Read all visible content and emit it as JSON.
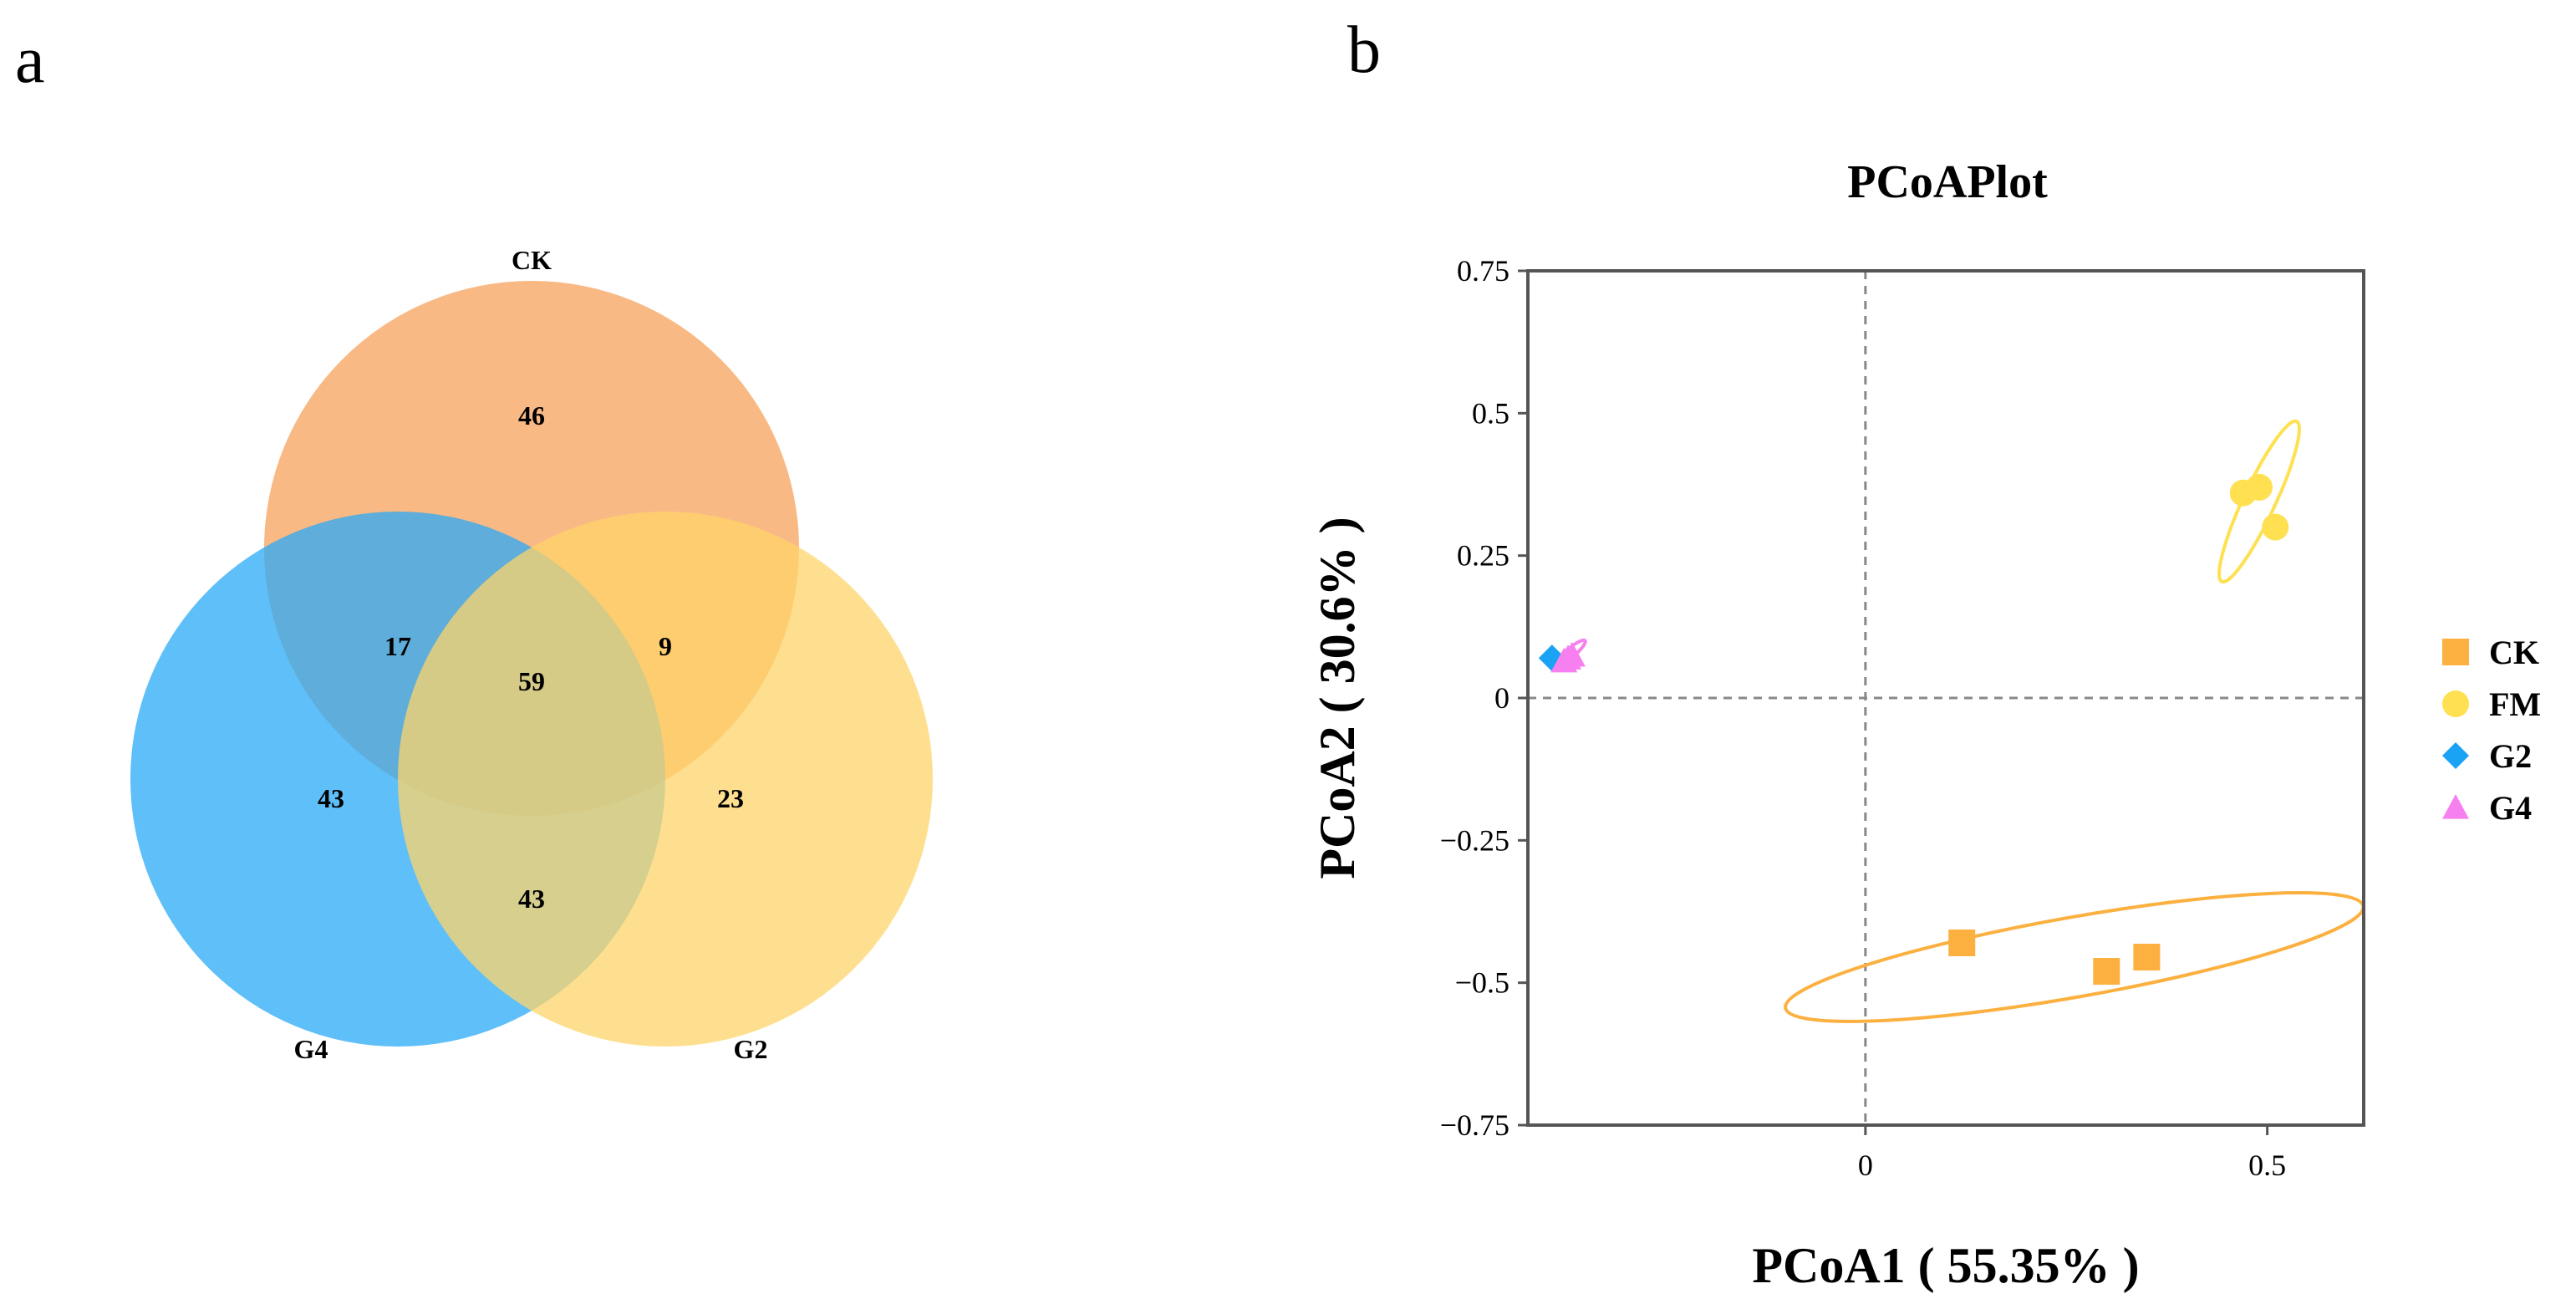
{
  "panel_a_label": "a",
  "panel_b_label": "b",
  "chart_data": [
    {
      "type": "venn",
      "sets": [
        {
          "name": "CK",
          "color": "#f7a15b"
        },
        {
          "name": "G4",
          "color": "#2aaaf7"
        },
        {
          "name": "G2",
          "color": "#fdd46a"
        }
      ],
      "regions": [
        {
          "sets": [
            "CK"
          ],
          "value": "46"
        },
        {
          "sets": [
            "G4"
          ],
          "value": "43"
        },
        {
          "sets": [
            "G2"
          ],
          "value": "23"
        },
        {
          "sets": [
            "CK",
            "G4"
          ],
          "value": "17"
        },
        {
          "sets": [
            "CK",
            "G2"
          ],
          "value": "9"
        },
        {
          "sets": [
            "G4",
            "G2"
          ],
          "value": "43"
        },
        {
          "sets": [
            "CK",
            "G4",
            "G2"
          ],
          "value": "59"
        }
      ]
    },
    {
      "type": "scatter",
      "title": "PCoAPlot",
      "xlabel": "PCoA1 ( 55.35% )",
      "ylabel": "PCoA2 ( 30.6% )",
      "xlim": [
        -0.42,
        0.62
      ],
      "ylim": [
        -0.75,
        0.75
      ],
      "xticks": [
        0,
        0.5
      ],
      "xtick_labels": [
        "0",
        "0.5"
      ],
      "yticks": [
        -0.75,
        -0.5,
        -0.25,
        0,
        0.25,
        0.5,
        0.75
      ],
      "ytick_labels": [
        "−0.75",
        "−0.5",
        "−0.25",
        "0",
        "0.25",
        "0.5",
        "0.75"
      ],
      "reference_lines": {
        "x": 0,
        "y": 0,
        "style": "dashed"
      },
      "legend": "right",
      "series": [
        {
          "name": "CK",
          "marker": "square",
          "color": "#fbb040",
          "points": [
            [
              0.12,
              -0.43
            ],
            [
              0.3,
              -0.48
            ],
            [
              0.35,
              -0.455
            ]
          ],
          "ellipse": {
            "center": [
              0.26,
              -0.455
            ],
            "semi_axes": [
              0.365,
              0.07
            ],
            "angle_deg": -10
          }
        },
        {
          "name": "FM",
          "marker": "circle",
          "color": "#fee050",
          "points": [
            [
              0.47,
              0.36
            ],
            [
              0.49,
              0.37
            ],
            [
              0.51,
              0.3
            ]
          ],
          "ellipse": {
            "center": [
              0.49,
              0.345
            ],
            "semi_axes": [
              0.11,
              0.028
            ],
            "angle_deg": -65
          }
        },
        {
          "name": "G2",
          "marker": "diamond",
          "color": "#1aa2f5",
          "points": [
            [
              -0.39,
              0.07
            ]
          ]
        },
        {
          "name": "G4",
          "marker": "triangle",
          "color": "#f780f0",
          "points": [
            [
              -0.375,
              0.065
            ],
            [
              -0.365,
              0.075
            ],
            [
              -0.37,
              0.07
            ]
          ],
          "ellipse": {
            "center": [
              -0.368,
              0.078
            ],
            "semi_axes": [
              0.025,
              0.008
            ],
            "angle_deg": -40
          }
        }
      ]
    }
  ]
}
